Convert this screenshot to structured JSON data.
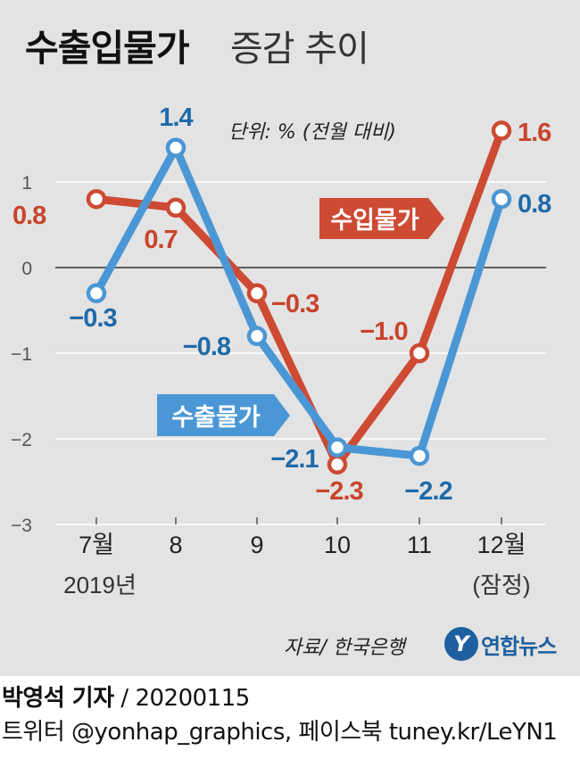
{
  "title": {
    "main": "수출입물가",
    "sub": "증감 추이"
  },
  "unit": "단위: % (전월 대비)",
  "colors": {
    "import": "#cd4a33",
    "export": "#4b97d5",
    "import_label": "#c8442b",
    "export_label": "#1e6aa9",
    "background": "#e3e3e3"
  },
  "chart_data": {
    "type": "line",
    "categories": [
      "7월",
      "8",
      "9",
      "10",
      "11",
      "12월"
    ],
    "x_sublabels": [
      "2019년",
      "",
      "",
      "",
      "",
      "(잠정)"
    ],
    "yticks": [
      "1",
      "0",
      "−1",
      "−2",
      "−3"
    ],
    "ytick_values": [
      1,
      0,
      -1,
      -2,
      -3
    ],
    "ylim": [
      -3,
      1.6
    ],
    "series": [
      {
        "name": "수입물가",
        "values": [
          0.8,
          0.7,
          -0.3,
          -2.3,
          -1.0,
          1.6
        ],
        "value_labels": [
          "0.8",
          "0.7",
          "−0.3",
          "−2.3",
          "−1.0",
          "1.6"
        ]
      },
      {
        "name": "수출물가",
        "values": [
          -0.3,
          1.4,
          -0.8,
          -2.1,
          -2.2,
          0.8
        ],
        "value_labels": [
          "−0.3",
          "1.4",
          "−0.8",
          "−2.1",
          "−2.2",
          "0.8"
        ]
      }
    ]
  },
  "source": "자료/ 한국은행",
  "logo": {
    "mark": "Y",
    "text": "연합뉴스"
  },
  "credit": {
    "line1_name": "박영석 기자",
    "line1_rest": " /  20200115",
    "line2": "트위터 @yonhap_graphics, 페이스북 tuney.kr/LeYN1"
  }
}
